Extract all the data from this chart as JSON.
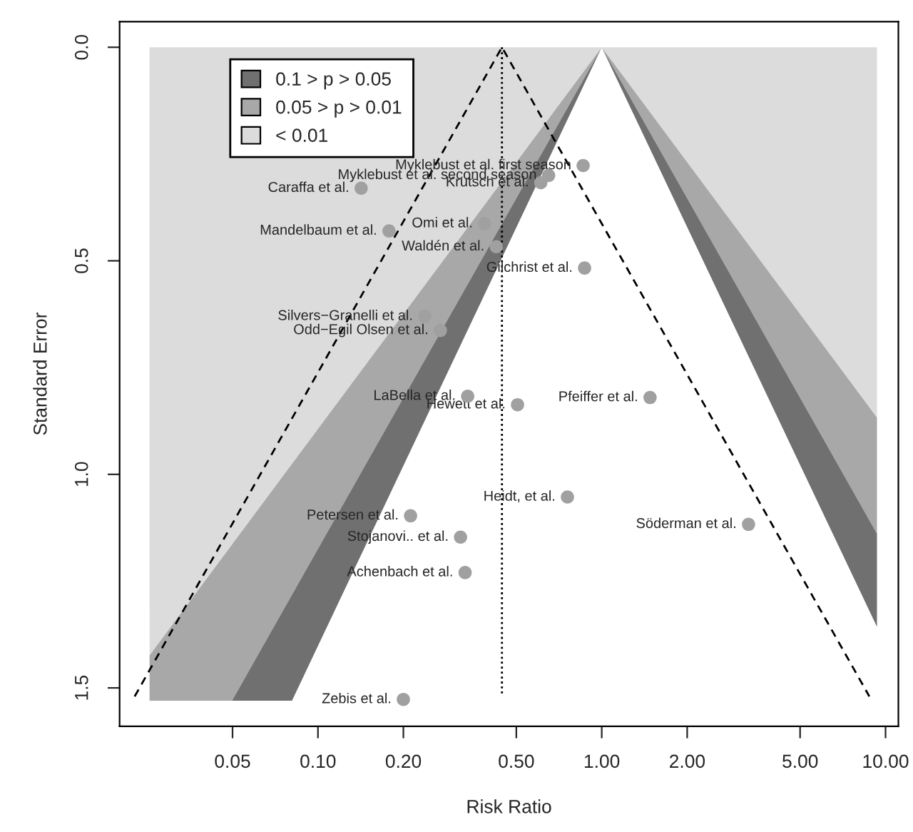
{
  "chart_data": {
    "type": "scatter",
    "xlabel": "Risk Ratio",
    "ylabel": "Standard Error",
    "log": "x",
    "xlim": [
      0.02,
      11.1
    ],
    "ylim": [
      1.59,
      -0.06
    ],
    "xticks": [
      0.05,
      {
        "value": 0.1,
        "label": "0.10"
      },
      {
        "value": 0.2,
        "label": "0.20"
      },
      {
        "value": 0.5,
        "label": "0.50"
      },
      {
        "value": 1,
        "label": "1.00"
      },
      {
        "value": 2,
        "label": "2.00"
      },
      {
        "value": 5,
        "label": "5.00"
      },
      {
        "value": 10,
        "label": "10.00"
      }
    ],
    "yticks": [
      {
        "value": 0,
        "label": "0.0"
      },
      0.5,
      {
        "value": 1,
        "label": "1.0"
      },
      1.5
    ],
    "grid": false,
    "legend": "top left",
    "series": [
      {
        "type": "area",
        "name": "< 0.01",
        "color": "#dcdcdc",
        "x": [
          0.0255,
          1,
          0.0255,
          null,
          1,
          9.33,
          9.33
        ],
        "values": [
          0,
          0,
          1.424,
          null,
          0,
          0,
          0.867
        ]
      },
      {
        "type": "area",
        "name": "0.05 > p > 0.01",
        "color": "#a8a8a8",
        "x": [
          1,
          0.0255,
          0.0255,
          0.0498,
          null,
          1,
          9.33,
          9.33
        ],
        "values": [
          0,
          1.424,
          1.53,
          1.53,
          null,
          0,
          0.867,
          1.139
        ]
      },
      {
        "type": "area",
        "name": "0.1 > p > 0.05",
        "color": "#707070",
        "x": [
          1,
          0.0498,
          0.081,
          null,
          1,
          9.33,
          9.33
        ],
        "values": [
          0,
          1.53,
          1.53,
          null,
          0,
          1.139,
          1.357
        ]
      },
      {
        "type": "line",
        "line_style": "dashed",
        "color": "#000000",
        "x": [
          0.0226,
          0.445,
          8.77
        ],
        "values": [
          1.52,
          0,
          1.52
        ]
      },
      {
        "type": "line",
        "line_style": "dotted",
        "color": "#000000",
        "x": [
          0.445,
          0.445
        ],
        "values": [
          0,
          1.52
        ]
      },
      {
        "marker": "circle",
        "color": "#a0a0a0",
        "x": [
          0.86,
          0.65,
          0.61,
          0.142,
          0.178,
          0.387,
          0.425,
          0.87,
          0.238,
          0.27,
          0.337,
          0.505,
          1.48,
          0.757,
          3.29,
          0.212,
          0.318,
          0.33,
          0.2
        ],
        "values": [
          0.277,
          0.3,
          0.317,
          0.33,
          0.43,
          0.413,
          0.467,
          0.517,
          0.63,
          0.663,
          0.817,
          0.837,
          0.82,
          1.053,
          1.117,
          1.097,
          1.147,
          1.23,
          1.527
        ]
      }
    ],
    "annotations": [
      {
        "text": "Myklebust et al. first season",
        "x": 0.86,
        "y": 0.277
      },
      {
        "text": "Myklebust et al. second season",
        "x": 0.65,
        "y": 0.3
      },
      {
        "text": "Krutsch et al.",
        "x": 0.61,
        "y": 0.317
      },
      {
        "text": "Caraffa et al.",
        "x": 0.142,
        "y": 0.33
      },
      {
        "text": "Mandelbaum et al.",
        "x": 0.178,
        "y": 0.43
      },
      {
        "text": "Omi et al.",
        "x": 0.387,
        "y": 0.413
      },
      {
        "text": "Waldén et al.",
        "x": 0.425,
        "y": 0.467
      },
      {
        "text": "Gilchrist et al.",
        "x": 0.87,
        "y": 0.517
      },
      {
        "text": "Silvers−Granelli et al.",
        "x": 0.238,
        "y": 0.63
      },
      {
        "text": "Odd−Egil Olsen et al.",
        "x": 0.27,
        "y": 0.663
      },
      {
        "text": "LaBella et al.",
        "x": 0.337,
        "y": 0.817
      },
      {
        "text": "Hewett et al.",
        "x": 0.505,
        "y": 0.837
      },
      {
        "text": "Pfeiffer et al.",
        "x": 1.48,
        "y": 0.82
      },
      {
        "text": "Heidt, et al.",
        "x": 0.757,
        "y": 1.053
      },
      {
        "text": "Söderman et al.",
        "x": 3.29,
        "y": 1.117
      },
      {
        "text": "Petersen et al.",
        "x": 0.212,
        "y": 1.097
      },
      {
        "text": "Stojanovi.. et al.",
        "x": 0.318,
        "y": 1.147
      },
      {
        "text": "Achenbach et al.",
        "x": 0.33,
        "y": 1.23
      },
      {
        "text": "Zebis et al.",
        "x": 0.2,
        "y": 1.527
      }
    ]
  }
}
